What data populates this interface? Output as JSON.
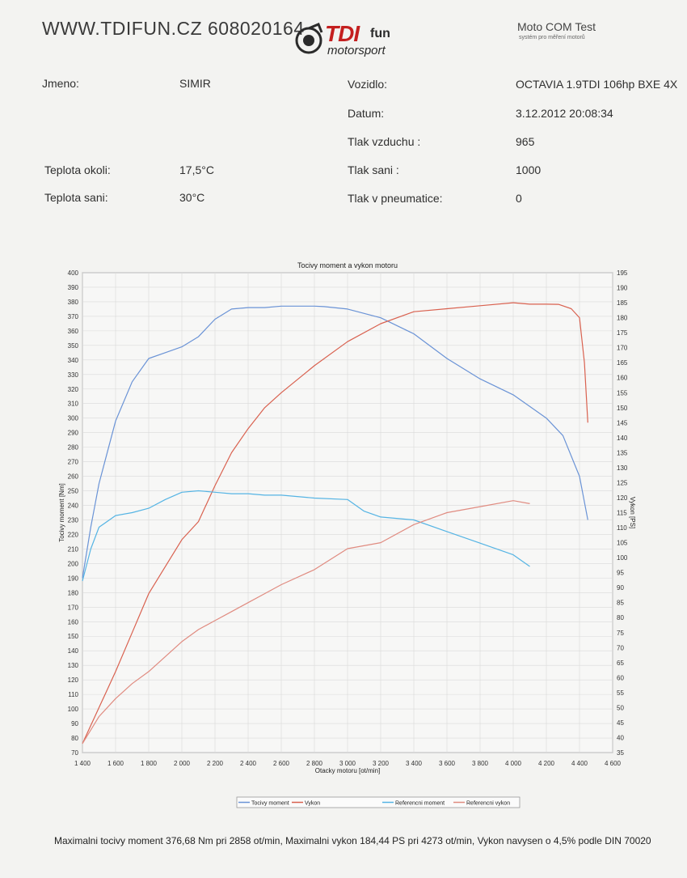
{
  "header": {
    "site": "WWW.TDIFUN.CZ 608020164",
    "logo_tdi": "TDI",
    "logo_fun": "fun",
    "logo_motorsport": "motorsport",
    "app_title": "Moto COM Test",
    "app_subtitle": "systém pro měření motorů"
  },
  "info": {
    "jmeno_label": "Jmeno:",
    "jmeno_value": "SIMIR",
    "vozidlo_label": "Vozidlo:",
    "vozidlo_value": "OCTAVIA 1.9TDI 106hp BXE 4X",
    "datum_label": "Datum:",
    "datum_value": "3.12.2012 20:08:34",
    "tlak_vzduchu_label": "Tlak vzduchu :",
    "tlak_vzduchu_value": "965",
    "teplota_okoli_label": "Teplota okoli:",
    "teplota_okoli_value": "17,5°C",
    "tlak_sani_label": "Tlak sani :",
    "tlak_sani_value": "1000",
    "teplota_sani_label": "Teplota sani:",
    "teplota_sani_value": "30°C",
    "tlak_pneu_label": "Tlak v pneumatice:",
    "tlak_pneu_value": "0"
  },
  "chart_data": {
    "type": "line",
    "title": "Tocivy moment a vykon motoru",
    "xlabel": "Otacky motoru [ot/min]",
    "ylabel_left": "Tocivy moment [Nm]",
    "ylabel_right": "Vykon [PS]",
    "xlim": [
      1400,
      4600
    ],
    "ylim_left": [
      70,
      400
    ],
    "ylim_right": [
      35,
      195
    ],
    "x_ticks": [
      1400,
      1600,
      1800,
      2000,
      2200,
      2400,
      2600,
      2800,
      3000,
      3200,
      3400,
      3600,
      3800,
      4000,
      4200,
      4400,
      4600
    ],
    "x_tick_labels": [
      "1 400",
      "1 600",
      "1 800",
      "2 000",
      "2 200",
      "2 400",
      "2 600",
      "2 800",
      "3 000",
      "3 200",
      "3 400",
      "3 600",
      "3 800",
      "4 000",
      "4 200",
      "4 400",
      "4 600"
    ],
    "y_left_ticks": [
      70,
      80,
      90,
      100,
      110,
      120,
      130,
      140,
      150,
      160,
      170,
      180,
      190,
      200,
      210,
      220,
      230,
      240,
      250,
      260,
      270,
      280,
      290,
      300,
      310,
      320,
      330,
      340,
      350,
      360,
      370,
      380,
      390,
      400
    ],
    "y_right_ticks": [
      35,
      40,
      45,
      50,
      55,
      60,
      65,
      70,
      75,
      80,
      85,
      90,
      95,
      100,
      105,
      110,
      115,
      120,
      125,
      130,
      135,
      140,
      145,
      150,
      155,
      160,
      165,
      170,
      175,
      180,
      185,
      190,
      195
    ],
    "grid": true,
    "legend_position": "bottom",
    "series": [
      {
        "name": "Tocivy moment",
        "axis": "left",
        "color": "#6a93d6",
        "x": [
          1400,
          1450,
          1500,
          1600,
          1700,
          1800,
          1900,
          2000,
          2100,
          2200,
          2300,
          2400,
          2500,
          2600,
          2800,
          2858,
          3000,
          3200,
          3400,
          3600,
          3800,
          4000,
          4200,
          4300,
          4400,
          4450
        ],
        "y": [
          190,
          225,
          255,
          298,
          325,
          341,
          345,
          349,
          356,
          368,
          375,
          376,
          376,
          377,
          377,
          376.68,
          375,
          369,
          358,
          341,
          327,
          316,
          300,
          288,
          260,
          230
        ]
      },
      {
        "name": "Vykon",
        "axis": "right",
        "color": "#d9614f",
        "x": [
          1400,
          1500,
          1600,
          1700,
          1800,
          1900,
          2000,
          2100,
          2200,
          2300,
          2400,
          2500,
          2600,
          2800,
          3000,
          3200,
          3400,
          3600,
          3800,
          4000,
          4100,
          4200,
          4273,
          4350,
          4400,
          4430,
          4450
        ],
        "y": [
          38,
          50,
          62,
          75,
          88,
          97,
          106,
          112,
          124,
          135,
          143,
          150,
          155,
          164,
          172,
          178,
          182,
          183,
          184,
          185,
          184.5,
          184.5,
          184.44,
          183,
          180,
          165,
          145
        ]
      },
      {
        "name": "Referencni moment",
        "axis": "left",
        "color": "#55b4e4",
        "x": [
          1400,
          1450,
          1500,
          1600,
          1700,
          1800,
          1900,
          2000,
          2100,
          2200,
          2300,
          2400,
          2500,
          2600,
          2800,
          3000,
          3100,
          3200,
          3400,
          3600,
          3800,
          4000,
          4100
        ],
        "y": [
          188,
          210,
          225,
          233,
          235,
          238,
          244,
          249,
          250,
          249,
          248,
          248,
          247,
          247,
          245,
          244,
          236,
          232,
          230,
          222,
          214,
          206,
          198
        ]
      },
      {
        "name": "Referencni vykon",
        "axis": "right",
        "color": "#e08b80",
        "x": [
          1400,
          1500,
          1600,
          1700,
          1800,
          1900,
          2000,
          2100,
          2200,
          2300,
          2400,
          2500,
          2600,
          2800,
          3000,
          3200,
          3400,
          3600,
          3800,
          4000,
          4100
        ],
        "y": [
          38,
          47,
          53,
          58,
          62,
          67,
          72,
          76,
          79,
          82,
          85,
          88,
          91,
          96,
          103,
          105,
          111,
          115,
          117,
          119,
          118
        ]
      }
    ]
  },
  "summary": "Maximalni tocivy moment 376,68 Nm pri 2858 ot/min,  Maximalni vykon 184,44 PS pri 4273 ot/min,  Vykon navysen o 4,5% podle DIN 70020"
}
